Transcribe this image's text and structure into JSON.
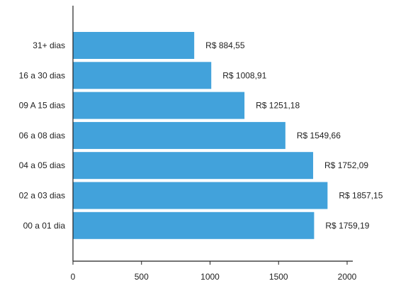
{
  "chart_data": {
    "type": "bar",
    "orientation": "horizontal",
    "categories": [
      "31+ dias",
      "16 a 30 dias",
      "09 A 15 dias",
      "06 a 08 dias",
      "04 a 05 dias",
      "02 a 03 dias",
      "00 a 01 dia"
    ],
    "values": [
      884.55,
      1008.91,
      1251.18,
      1549.66,
      1752.09,
      1857.15,
      1759.19
    ],
    "data_labels": [
      "R$ 884,55",
      "R$ 1008,91",
      "R$ 1251,18",
      "R$ 1549,66",
      "R$ 1752,09",
      "R$ 1857,15",
      "R$ 1759,19"
    ],
    "x_ticks": [
      0,
      500,
      1000,
      1500,
      2000
    ],
    "x_tick_labels": [
      "0",
      "500",
      "1000",
      "1500",
      "2000"
    ],
    "xlim": [
      0,
      2000
    ],
    "grid": false,
    "legend": "none",
    "bar_color": "#42a2db",
    "axis_color": "#222222"
  }
}
